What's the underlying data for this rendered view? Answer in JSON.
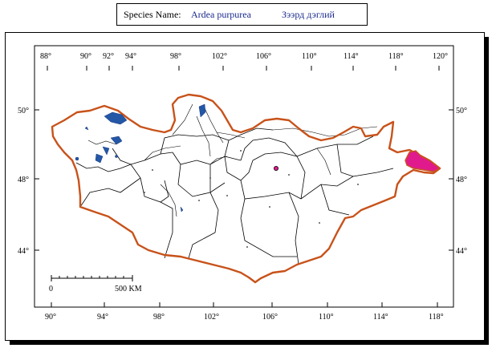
{
  "header": {
    "species_label": "Species Name:",
    "scientific_name": "Ardea purpurea",
    "mongolian_name": "Зээрд дэглий"
  },
  "top_ticks": [
    "88°",
    "90°",
    "92°",
    "94°",
    "98°",
    "102°",
    "106°",
    "110°",
    "114°",
    "118°",
    "120°"
  ],
  "bottom_ticks": [
    "90°",
    "94°",
    "98°",
    "102°",
    "106°",
    "110°",
    "114°",
    "118°"
  ],
  "left_ticks": [
    "50°",
    "48°",
    "44°"
  ],
  "right_ticks": [
    "50°",
    "48°",
    "44°"
  ],
  "scale": {
    "start": "0",
    "end": "500 KM"
  },
  "colors": {
    "border": "#c8521a",
    "lakes": "#2457a6",
    "range_fill": "#e01a8c",
    "text_blue": "#1a2a8c"
  }
}
